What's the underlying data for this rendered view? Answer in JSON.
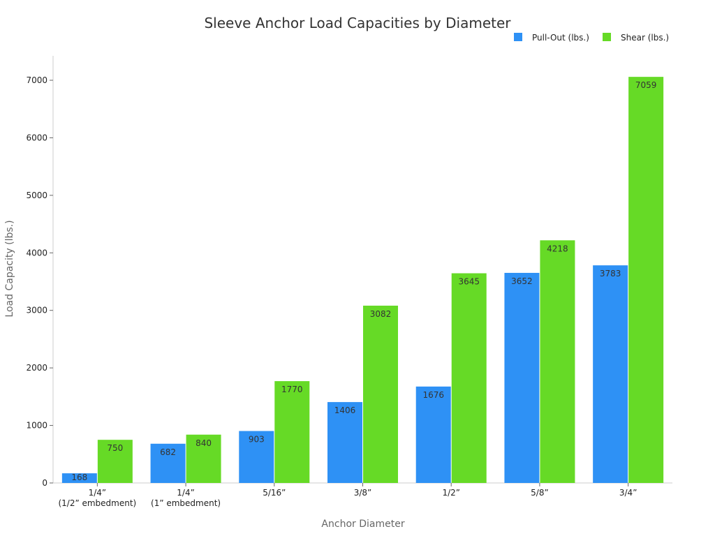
{
  "chart_data": {
    "type": "bar",
    "title": "Sleeve Anchor Load Capacities by Diameter",
    "xlabel": "Anchor Diameter",
    "ylabel": "Load Capacity (lbs.)",
    "categories": [
      [
        "1/4”",
        "(1/2” embedment)"
      ],
      [
        "1/4”",
        "(1” embedment)"
      ],
      [
        "5/16”"
      ],
      [
        "3/8”"
      ],
      [
        "1/2”"
      ],
      [
        "5/8”"
      ],
      [
        "3/4”"
      ]
    ],
    "series": [
      {
        "name": "Pull-Out (lbs.)",
        "color": "#2E91F5",
        "values": [
          168,
          682,
          903,
          1406,
          1676,
          3652,
          3783
        ]
      },
      {
        "name": "Shear (lbs.)",
        "color": "#66DA26",
        "values": [
          750,
          840,
          1770,
          3082,
          3645,
          4218,
          7059
        ]
      }
    ],
    "ylim": [
      0,
      7400
    ],
    "yticks": [
      0,
      1000,
      2000,
      3000,
      4000,
      5000,
      6000,
      7000
    ],
    "grid": false,
    "legend": "top-right"
  }
}
